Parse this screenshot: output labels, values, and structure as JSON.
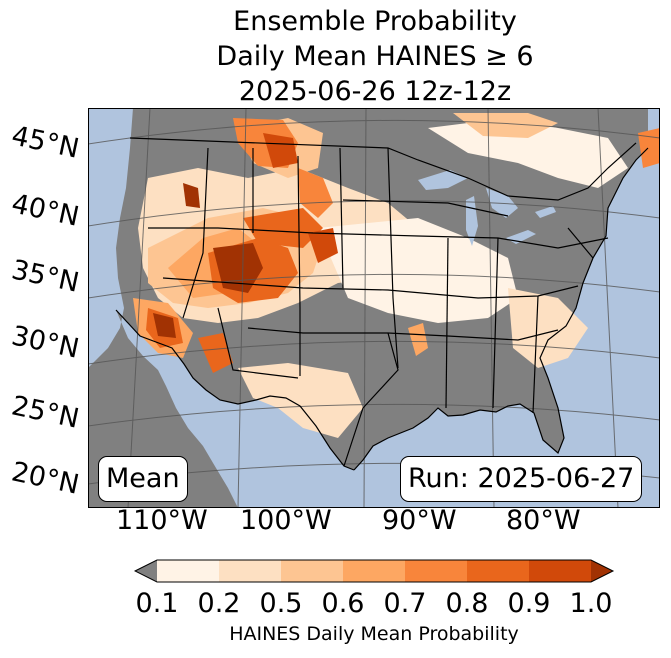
{
  "title": {
    "line1": "Ensemble Probability",
    "line2": "Daily Mean HAINES ≥ 6",
    "line3": "2025-06-26 12z-12z"
  },
  "map": {
    "lat_labels": [
      "45°N",
      "40°N",
      "35°N",
      "30°N",
      "25°N",
      "20°N"
    ],
    "lon_labels": [
      "110°W",
      "100°W",
      "90°W",
      "80°W"
    ],
    "stat_label": "Mean",
    "run_label": "Run: 2025-06-27",
    "colors": {
      "ocean": "#b0c4de",
      "no_data_land": "#808080",
      "borders": "#000000",
      "graticule": "#555555"
    }
  },
  "colorbar": {
    "ticks": [
      "0.1",
      "0.2",
      "0.5",
      "0.6",
      "0.7",
      "0.8",
      "0.9",
      "1.0"
    ],
    "colors": [
      "#fff3e6",
      "#fde0c2",
      "#fdc592",
      "#fda762",
      "#f8853b",
      "#e9661c",
      "#d1490a",
      "#a13203"
    ],
    "under_color": "#808080",
    "label": "HAINES Daily Mean Probability"
  }
}
